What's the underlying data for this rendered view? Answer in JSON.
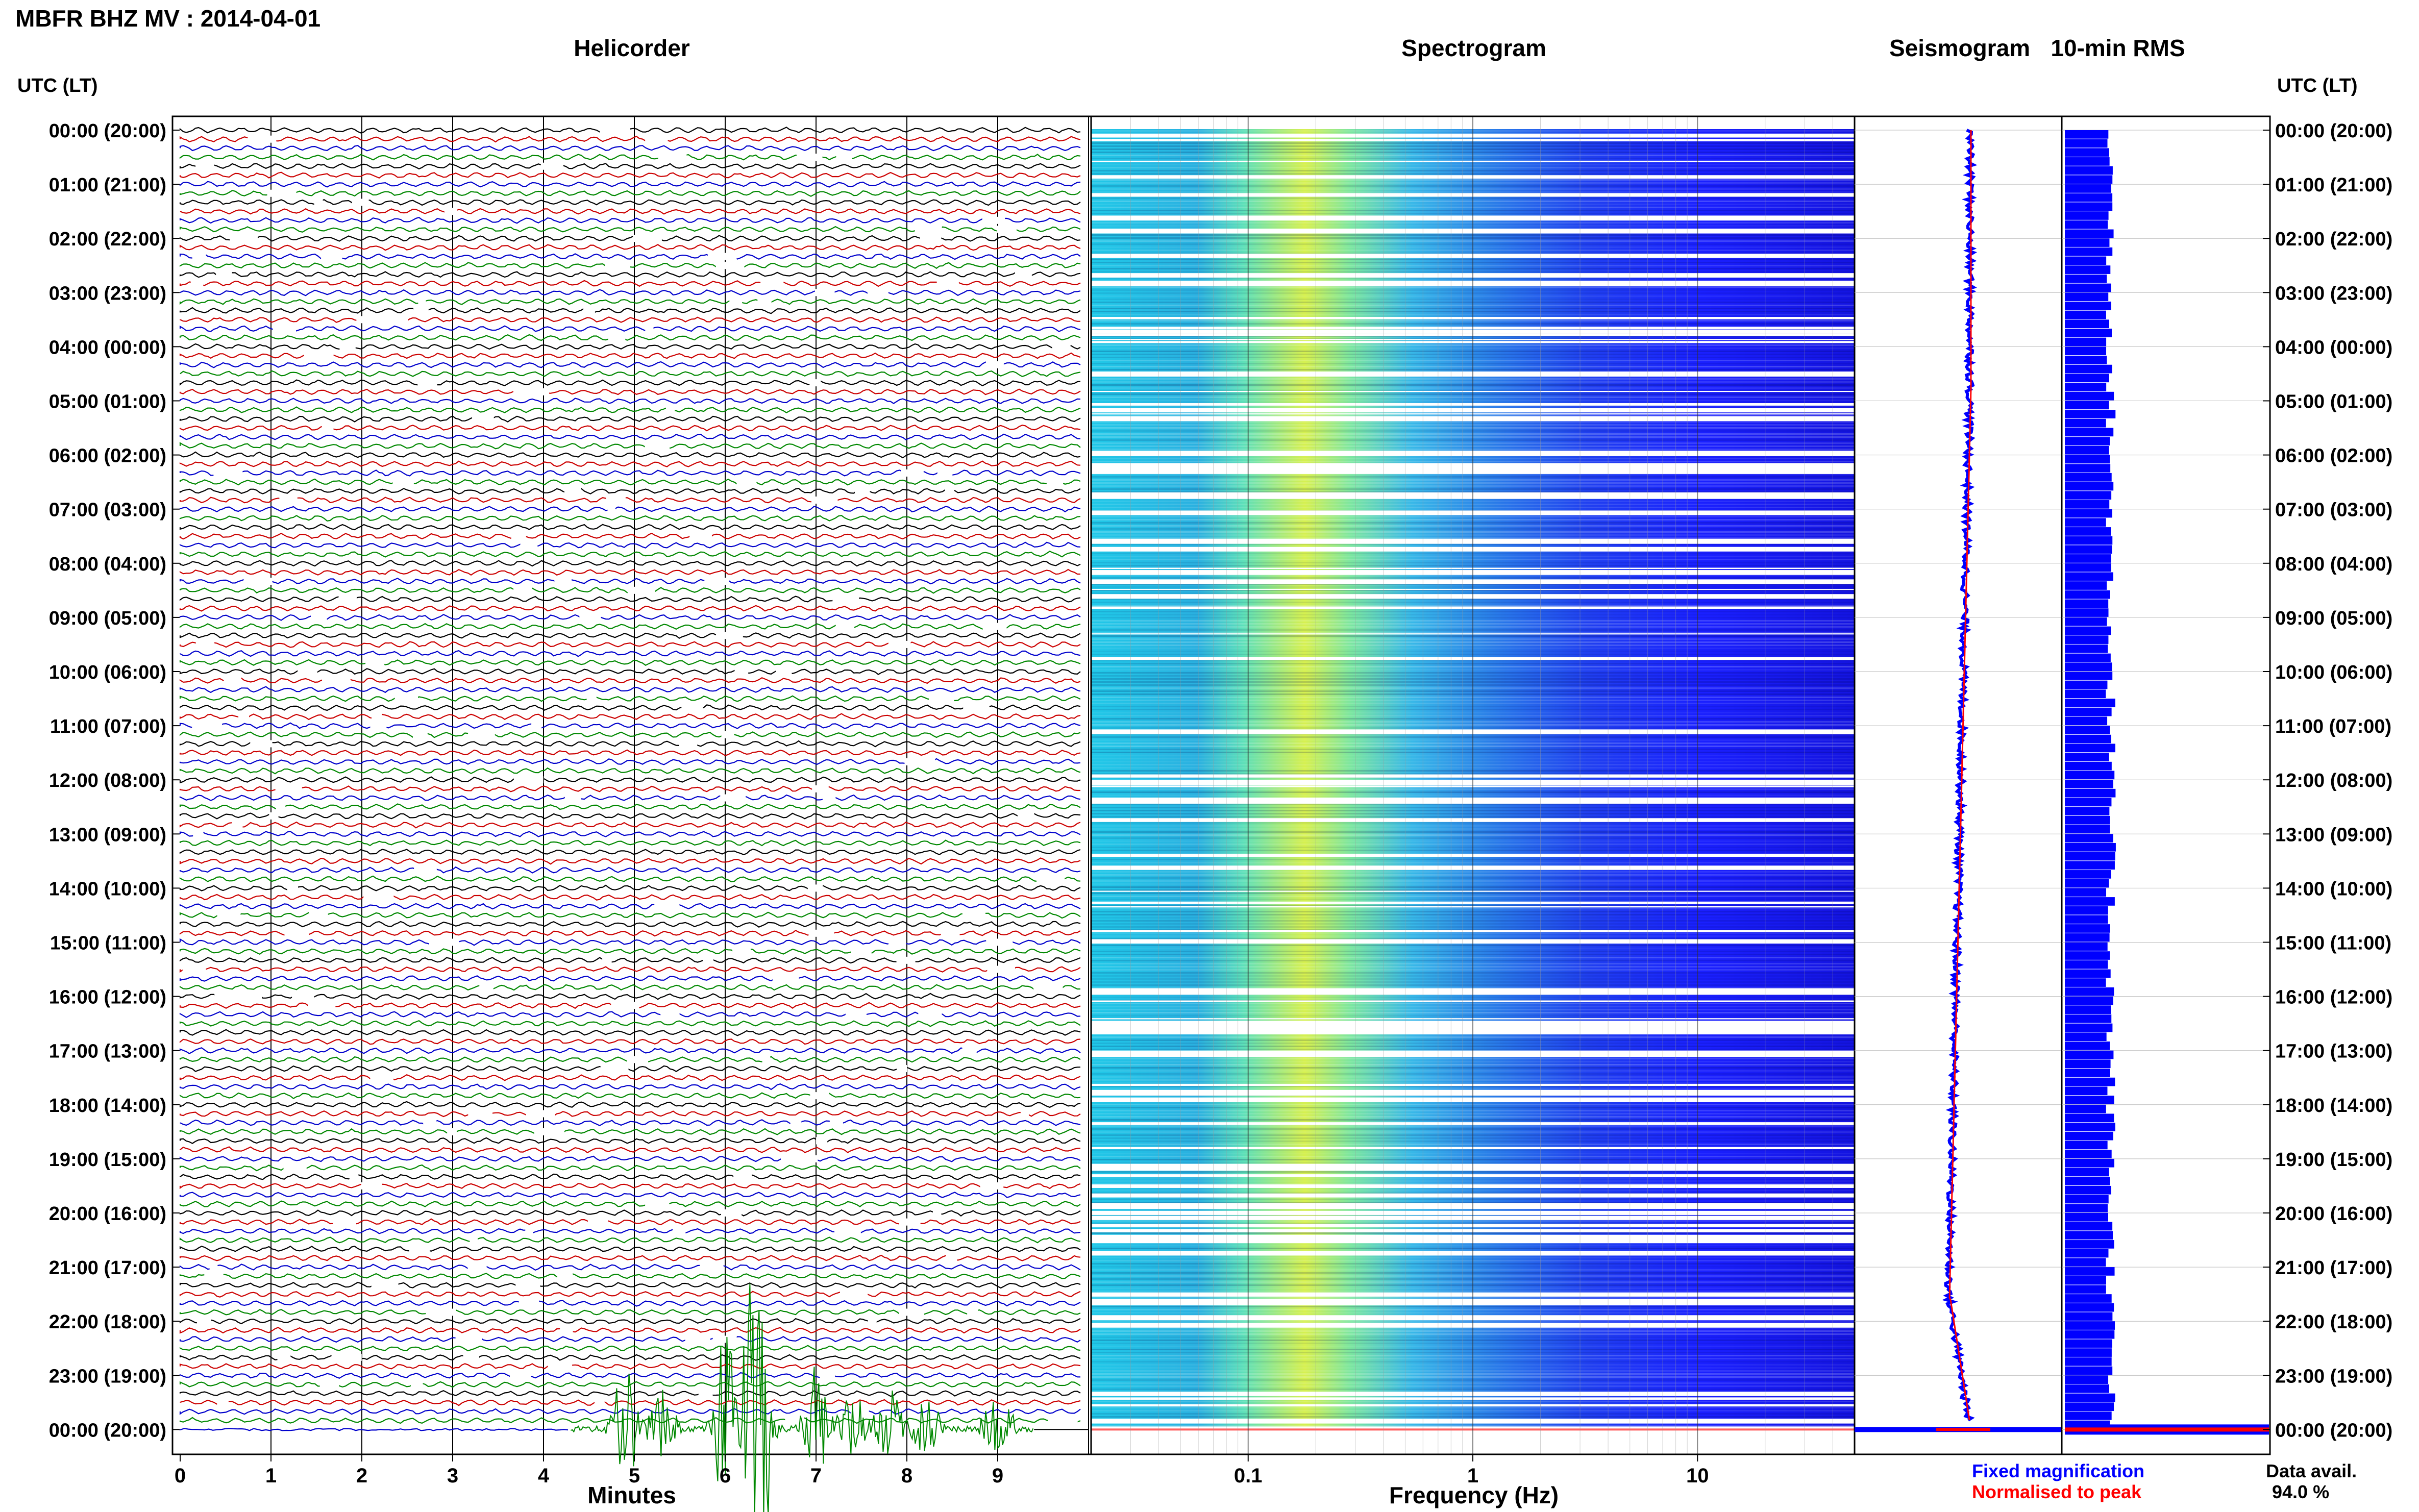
{
  "title": "MBFR BHZ MV : 2014-04-01",
  "panels": {
    "helicorder": "Helicorder",
    "spectrogram": "Spectrogram",
    "seismogram": "Seismogram",
    "rms": "10-min RMS"
  },
  "axis": {
    "left_header": "UTC (LT)",
    "right_header": "UTC (LT)",
    "minutes_label": "Minutes",
    "frequency_label": "Frequency (Hz)"
  },
  "time_labels": [
    "00:00 (20:00)",
    "01:00 (21:00)",
    "02:00 (22:00)",
    "03:00 (23:00)",
    "04:00 (00:00)",
    "05:00 (01:00)",
    "06:00 (02:00)",
    "07:00 (03:00)",
    "08:00 (04:00)",
    "09:00 (05:00)",
    "10:00 (06:00)",
    "11:00 (07:00)",
    "12:00 (08:00)",
    "13:00 (09:00)",
    "14:00 (10:00)",
    "15:00 (11:00)",
    "16:00 (12:00)",
    "17:00 (13:00)",
    "18:00 (14:00)",
    "19:00 (15:00)",
    "20:00 (16:00)",
    "21:00 (17:00)",
    "22:00 (18:00)",
    "23:00 (19:00)",
    "00:00 (20:00)"
  ],
  "minute_ticks": [
    "0",
    "1",
    "2",
    "3",
    "4",
    "5",
    "6",
    "7",
    "8",
    "9"
  ],
  "frequency_ticks": [
    "0.1",
    "1",
    "10"
  ],
  "legend": {
    "fixed": "Fixed magnification",
    "normalised": "Normalised to peak",
    "fixed_color": "#0000ff",
    "normalised_color": "#ff0000"
  },
  "data_availability": {
    "label": "Data avail.",
    "value": "94.0 %"
  },
  "colors": {
    "trace_cycle": [
      "#000000",
      "#cc0000",
      "#0000cc",
      "#008800"
    ],
    "spectrogram_background": "#1e1eff",
    "rms_bar": "#0000ff",
    "rms_last": "#ff0000"
  },
  "chart_data": [
    {
      "type": "line",
      "name": "helicorder",
      "title": "Helicorder",
      "xlabel": "Minutes",
      "xlim": [
        0,
        10
      ],
      "x_ticks": [
        0,
        1,
        2,
        3,
        4,
        5,
        6,
        7,
        8,
        9
      ],
      "rows_per_hour": 6,
      "hours": 24,
      "event_trace": {
        "hour": "00:00 (20:00)",
        "note_minutes": [
          4.3,
          9.2
        ],
        "peak_minutes": [
          4.9,
          5.3,
          6.0,
          6.1,
          6.4,
          7.0,
          7.4,
          7.8,
          8.2,
          9.0
        ]
      }
    },
    {
      "type": "heatmap",
      "name": "spectrogram",
      "title": "Spectrogram",
      "xlabel": "Frequency (Hz)",
      "x_scale": "log",
      "xlim": [
        0.02,
        50
      ],
      "x_ticks": [
        0.1,
        1,
        10
      ],
      "peak_band_hz": [
        0.2,
        0.3
      ],
      "colormap": "jet"
    },
    {
      "type": "line",
      "name": "seismogram",
      "title": "Seismogram",
      "series": [
        {
          "name": "Fixed magnification",
          "color": "#0000ff"
        },
        {
          "name": "Normalised to peak",
          "color": "#ff0000"
        }
      ]
    },
    {
      "type": "bar",
      "name": "rms",
      "title": "10-min RMS",
      "orientation": "horizontal",
      "bars_per_hour": 6,
      "hours": 24
    }
  ]
}
